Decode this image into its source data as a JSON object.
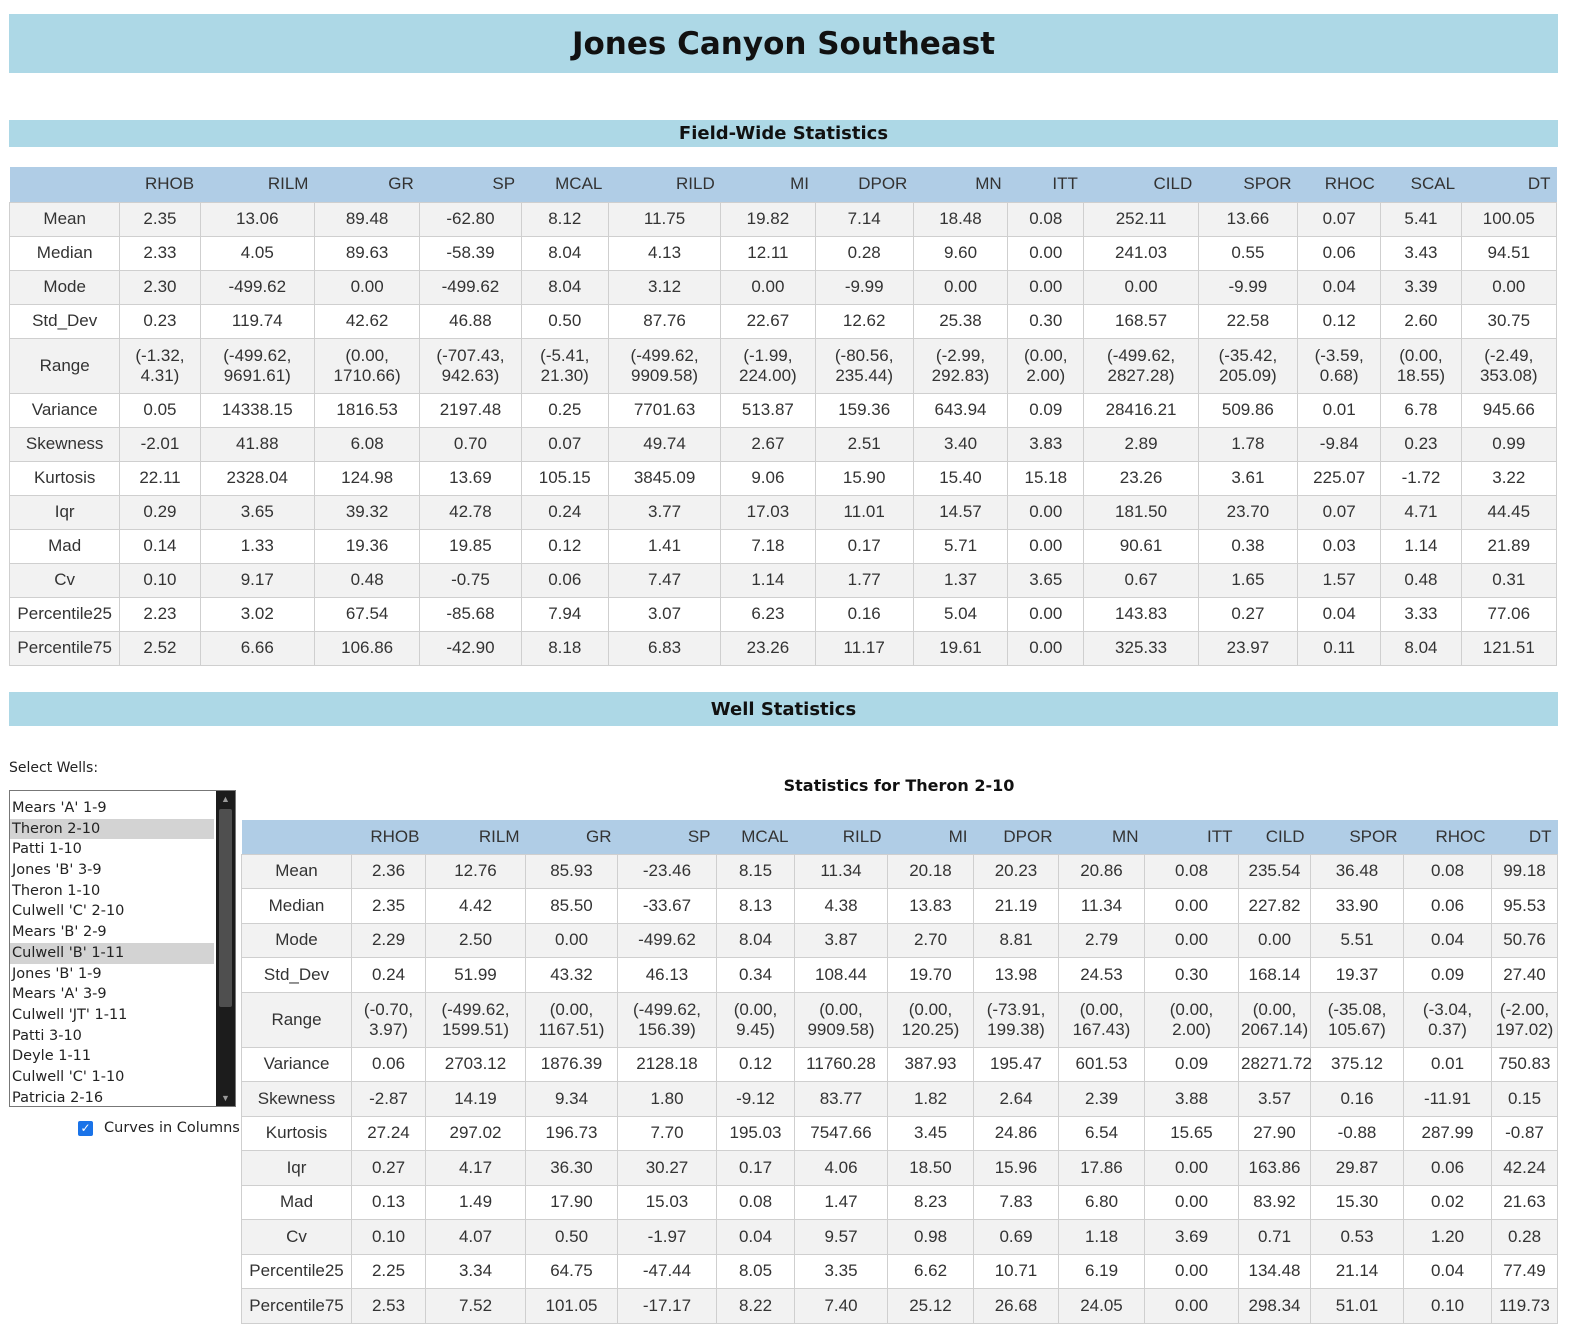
{
  "page_title": "Jones Canyon Southeast",
  "field_section_title": "Field-Wide Statistics",
  "well_section_title": "Well Statistics",
  "select_label": "Select Wells:",
  "wells": [
    {
      "name": "Mears 'A' 1-9",
      "selected": false
    },
    {
      "name": "Theron 2-10",
      "selected": true
    },
    {
      "name": "Patti 1-10",
      "selected": false
    },
    {
      "name": "Jones 'B' 3-9",
      "selected": false
    },
    {
      "name": "Theron 1-10",
      "selected": false
    },
    {
      "name": "Culwell 'C' 2-10",
      "selected": false
    },
    {
      "name": "Mears 'B' 2-9",
      "selected": false
    },
    {
      "name": "Culwell 'B' 1-11",
      "selected": true
    },
    {
      "name": "Jones 'B' 1-9",
      "selected": false
    },
    {
      "name": "Mears 'A' 3-9",
      "selected": false
    },
    {
      "name": "Culwell 'JT' 1-11",
      "selected": false
    },
    {
      "name": "Patti 3-10",
      "selected": false
    },
    {
      "name": "Deyle 1-11",
      "selected": false
    },
    {
      "name": "Culwell 'C' 1-10",
      "selected": false
    },
    {
      "name": "Patricia 2-16",
      "selected": false
    }
  ],
  "curves_in_columns_label": "Curves in Columns",
  "curves_in_columns_checked": true,
  "well_stats_title": "Statistics for Theron 2-10",
  "field_table": {
    "columns": [
      "RHOB",
      "RILM",
      "GR",
      "SP",
      "MCAL",
      "RILD",
      "MI",
      "DPOR",
      "MN",
      "ITT",
      "CILD",
      "SPOR",
      "RHOC",
      "SCAL",
      "DT"
    ],
    "col_widths": [
      110,
      80,
      114,
      105,
      101,
      87,
      112,
      94,
      98,
      94,
      76,
      114,
      99,
      83,
      80,
      95
    ],
    "rows": [
      {
        "label": "Mean",
        "values": [
          "2.35",
          "13.06",
          "89.48",
          "-62.80",
          "8.12",
          "11.75",
          "19.82",
          "7.14",
          "18.48",
          "0.08",
          "252.11",
          "13.66",
          "0.07",
          "5.41",
          "100.05"
        ]
      },
      {
        "label": "Median",
        "values": [
          "2.33",
          "4.05",
          "89.63",
          "-58.39",
          "8.04",
          "4.13",
          "12.11",
          "0.28",
          "9.60",
          "0.00",
          "241.03",
          "0.55",
          "0.06",
          "3.43",
          "94.51"
        ]
      },
      {
        "label": "Mode",
        "values": [
          "2.30",
          "-499.62",
          "0.00",
          "-499.62",
          "8.04",
          "3.12",
          "0.00",
          "-9.99",
          "0.00",
          "0.00",
          "0.00",
          "-9.99",
          "0.04",
          "3.39",
          "0.00"
        ]
      },
      {
        "label": "Std_Dev",
        "values": [
          "0.23",
          "119.74",
          "42.62",
          "46.88",
          "0.50",
          "87.76",
          "22.67",
          "12.62",
          "25.38",
          "0.30",
          "168.57",
          "22.58",
          "0.12",
          "2.60",
          "30.75"
        ]
      },
      {
        "label": "Range",
        "values": [
          [
            "(-1.32,",
            "4.31)"
          ],
          [
            "(-499.62,",
            "9691.61)"
          ],
          [
            "(0.00,",
            "1710.66)"
          ],
          [
            "(-707.43,",
            "942.63)"
          ],
          [
            "(-5.41,",
            "21.30)"
          ],
          [
            "(-499.62,",
            "9909.58)"
          ],
          [
            "(-1.99,",
            "224.00)"
          ],
          [
            "(-80.56,",
            "235.44)"
          ],
          [
            "(-2.99,",
            "292.83)"
          ],
          [
            "(0.00,",
            "2.00)"
          ],
          [
            "(-499.62,",
            "2827.28)"
          ],
          [
            "(-35.42,",
            "205.09)"
          ],
          [
            "(-3.59,",
            "0.68)"
          ],
          [
            "(0.00,",
            "18.55)"
          ],
          [
            "(-2.49,",
            "353.08)"
          ]
        ]
      },
      {
        "label": "Variance",
        "values": [
          "0.05",
          "14338.15",
          "1816.53",
          "2197.48",
          "0.25",
          "7701.63",
          "513.87",
          "159.36",
          "643.94",
          "0.09",
          "28416.21",
          "509.86",
          "0.01",
          "6.78",
          "945.66"
        ]
      },
      {
        "label": "Skewness",
        "values": [
          "-2.01",
          "41.88",
          "6.08",
          "0.70",
          "0.07",
          "49.74",
          "2.67",
          "2.51",
          "3.40",
          "3.83",
          "2.89",
          "1.78",
          "-9.84",
          "0.23",
          "0.99"
        ]
      },
      {
        "label": "Kurtosis",
        "values": [
          "22.11",
          "2328.04",
          "124.98",
          "13.69",
          "105.15",
          "3845.09",
          "9.06",
          "15.90",
          "15.40",
          "15.18",
          "23.26",
          "3.61",
          "225.07",
          "-1.72",
          "3.22"
        ]
      },
      {
        "label": "Iqr",
        "values": [
          "0.29",
          "3.65",
          "39.32",
          "42.78",
          "0.24",
          "3.77",
          "17.03",
          "11.01",
          "14.57",
          "0.00",
          "181.50",
          "23.70",
          "0.07",
          "4.71",
          "44.45"
        ]
      },
      {
        "label": "Mad",
        "values": [
          "0.14",
          "1.33",
          "19.36",
          "19.85",
          "0.12",
          "1.41",
          "7.18",
          "0.17",
          "5.71",
          "0.00",
          "90.61",
          "0.38",
          "0.03",
          "1.14",
          "21.89"
        ]
      },
      {
        "label": "Cv",
        "values": [
          "0.10",
          "9.17",
          "0.48",
          "-0.75",
          "0.06",
          "7.47",
          "1.14",
          "1.77",
          "1.37",
          "3.65",
          "0.67",
          "1.65",
          "1.57",
          "0.48",
          "0.31"
        ]
      },
      {
        "label": "Percentile25",
        "values": [
          "2.23",
          "3.02",
          "67.54",
          "-85.68",
          "7.94",
          "3.07",
          "6.23",
          "0.16",
          "5.04",
          "0.00",
          "143.83",
          "0.27",
          "0.04",
          "3.33",
          "77.06"
        ]
      },
      {
        "label": "Percentile75",
        "values": [
          "2.52",
          "6.66",
          "106.86",
          "-42.90",
          "8.18",
          "6.83",
          "23.26",
          "11.17",
          "19.61",
          "0.00",
          "325.33",
          "23.97",
          "0.11",
          "8.04",
          "121.51"
        ]
      }
    ]
  },
  "well_table": {
    "columns": [
      "RHOB",
      "RILM",
      "GR",
      "SP",
      "MCAL",
      "RILD",
      "MI",
      "DPOR",
      "MN",
      "ITT",
      "CILD",
      "SPOR",
      "RHOC",
      "DT"
    ],
    "col_widths": [
      110,
      74,
      100,
      92,
      99,
      78,
      93,
      86,
      85,
      86,
      94,
      72,
      93,
      88,
      66
    ],
    "rows": [
      {
        "label": "Mean",
        "values": [
          "2.36",
          "12.76",
          "85.93",
          "-23.46",
          "8.15",
          "11.34",
          "20.18",
          "20.23",
          "20.86",
          "0.08",
          "235.54",
          "36.48",
          "0.08",
          "99.18"
        ]
      },
      {
        "label": "Median",
        "values": [
          "2.35",
          "4.42",
          "85.50",
          "-33.67",
          "8.13",
          "4.38",
          "13.83",
          "21.19",
          "11.34",
          "0.00",
          "227.82",
          "33.90",
          "0.06",
          "95.53"
        ]
      },
      {
        "label": "Mode",
        "values": [
          "2.29",
          "2.50",
          "0.00",
          "-499.62",
          "8.04",
          "3.87",
          "2.70",
          "8.81",
          "2.79",
          "0.00",
          "0.00",
          "5.51",
          "0.04",
          "50.76"
        ]
      },
      {
        "label": "Std_Dev",
        "values": [
          "0.24",
          "51.99",
          "43.32",
          "46.13",
          "0.34",
          "108.44",
          "19.70",
          "13.98",
          "24.53",
          "0.30",
          "168.14",
          "19.37",
          "0.09",
          "27.40"
        ]
      },
      {
        "label": "Range",
        "values": [
          [
            "(-0.70,",
            "3.97)"
          ],
          [
            "(-499.62,",
            "1599.51)"
          ],
          [
            "(0.00,",
            "1167.51)"
          ],
          [
            "(-499.62,",
            "156.39)"
          ],
          [
            "(0.00,",
            "9.45)"
          ],
          [
            "(0.00,",
            "9909.58)"
          ],
          [
            "(0.00,",
            "120.25)"
          ],
          [
            "(-73.91,",
            "199.38)"
          ],
          [
            "(0.00,",
            "167.43)"
          ],
          [
            "(0.00,",
            "2.00)"
          ],
          [
            "(0.00,",
            "2067.14)"
          ],
          [
            "(-35.08,",
            "105.67)"
          ],
          [
            "(-3.04,",
            "0.37)"
          ],
          [
            "(-2.00,",
            "197.02)"
          ]
        ]
      },
      {
        "label": "Variance",
        "values": [
          "0.06",
          "2703.12",
          "1876.39",
          "2128.18",
          "0.12",
          "11760.28",
          "387.93",
          "195.47",
          "601.53",
          "0.09",
          "28271.72",
          "375.12",
          "0.01",
          "750.83"
        ]
      },
      {
        "label": "Skewness",
        "values": [
          "-2.87",
          "14.19",
          "9.34",
          "1.80",
          "-9.12",
          "83.77",
          "1.82",
          "2.64",
          "2.39",
          "3.88",
          "3.57",
          "0.16",
          "-11.91",
          "0.15"
        ]
      },
      {
        "label": "Kurtosis",
        "values": [
          "27.24",
          "297.02",
          "196.73",
          "7.70",
          "195.03",
          "7547.66",
          "3.45",
          "24.86",
          "6.54",
          "15.65",
          "27.90",
          "-0.88",
          "287.99",
          "-0.87"
        ]
      },
      {
        "label": "Iqr",
        "values": [
          "0.27",
          "4.17",
          "36.30",
          "30.27",
          "0.17",
          "4.06",
          "18.50",
          "15.96",
          "17.86",
          "0.00",
          "163.86",
          "29.87",
          "0.06",
          "42.24"
        ]
      },
      {
        "label": "Mad",
        "values": [
          "0.13",
          "1.49",
          "17.90",
          "15.03",
          "0.08",
          "1.47",
          "8.23",
          "7.83",
          "6.80",
          "0.00",
          "83.92",
          "15.30",
          "0.02",
          "21.63"
        ]
      },
      {
        "label": "Cv",
        "values": [
          "0.10",
          "4.07",
          "0.50",
          "-1.97",
          "0.04",
          "9.57",
          "0.98",
          "0.69",
          "1.18",
          "3.69",
          "0.71",
          "0.53",
          "1.20",
          "0.28"
        ]
      },
      {
        "label": "Percentile25",
        "values": [
          "2.25",
          "3.34",
          "64.75",
          "-47.44",
          "8.05",
          "3.35",
          "6.62",
          "10.71",
          "6.19",
          "0.00",
          "134.48",
          "21.14",
          "0.04",
          "77.49"
        ]
      },
      {
        "label": "Percentile75",
        "values": [
          "2.53",
          "7.52",
          "101.05",
          "-17.17",
          "8.22",
          "7.40",
          "25.12",
          "26.68",
          "24.05",
          "0.00",
          "298.34",
          "51.01",
          "0.10",
          "119.73"
        ]
      }
    ]
  }
}
